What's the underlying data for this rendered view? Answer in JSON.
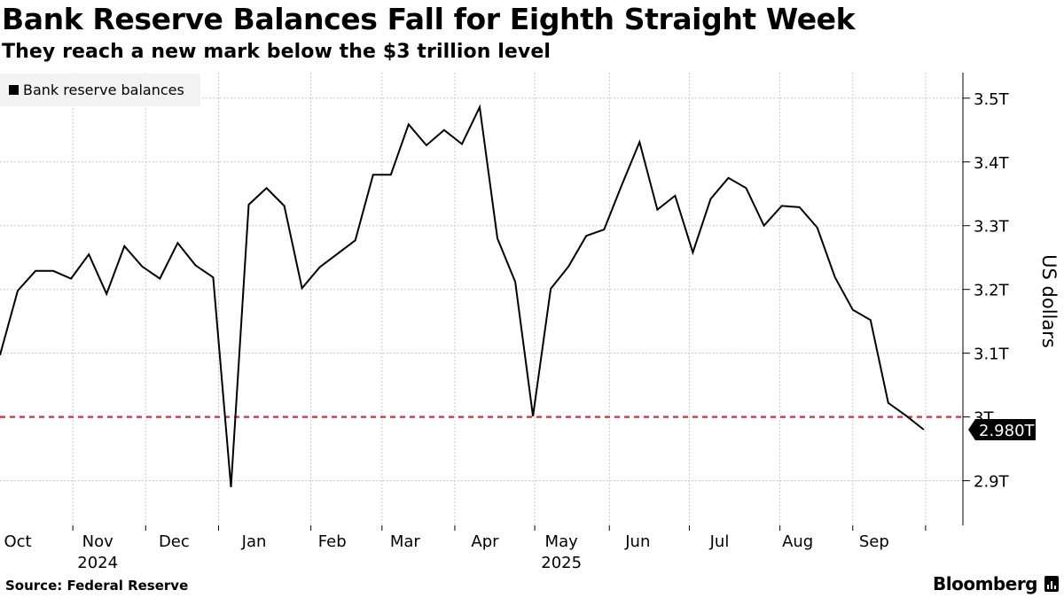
{
  "header": {
    "title": "Bank Reserve Balances Fall for Eighth Straight Week",
    "subtitle": "They reach a new mark below the $3 trillion level"
  },
  "footer": {
    "source": "Source: Federal Reserve",
    "brand": "Bloomberg"
  },
  "colors": {
    "line": "#000000",
    "reference": "#e0283c",
    "grid": "#c8c8c8",
    "last_label_bg": "#000000"
  },
  "chart_data": {
    "type": "line",
    "title": "Bank Reserve Balances Fall for Eighth Straight Week",
    "subtitle": "They reach a new mark below the $3 trillion level",
    "ylabel": "US dollars",
    "ylim": [
      2.83,
      3.54
    ],
    "y_ticks": [
      2.9,
      3.0,
      3.1,
      3.2,
      3.3,
      3.4,
      3.5
    ],
    "y_tick_labels": [
      "2.9T",
      "3T",
      "3.1T",
      "3.2T",
      "3.3T",
      "3.4T",
      "3.5T"
    ],
    "grid": true,
    "legend": {
      "position": "top-left",
      "entries": [
        "Bank reserve balances"
      ]
    },
    "x_unit": "weeks since 2024-09-25",
    "xlim": [
      0,
      54.2
    ],
    "months": [
      {
        "label": "Oct",
        "x": 1.0
      },
      {
        "label": "Nov",
        "x": 5.5
      },
      {
        "label": "Dec",
        "x": 9.8
      },
      {
        "label": "Jan",
        "x": 14.3
      },
      {
        "label": "Feb",
        "x": 18.7
      },
      {
        "label": "Mar",
        "x": 22.8
      },
      {
        "label": "Apr",
        "x": 27.3
      },
      {
        "label": "May",
        "x": 31.6
      },
      {
        "label": "Jun",
        "x": 35.9
      },
      {
        "label": "Jul",
        "x": 40.5
      },
      {
        "label": "Aug",
        "x": 44.9
      },
      {
        "label": "Sep",
        "x": 49.2
      }
    ],
    "year_labels": [
      {
        "label": "2024",
        "under": "Nov"
      },
      {
        "label": "2025",
        "under": "May"
      }
    ],
    "month_dividers": [
      4.1,
      8.2,
      12.3,
      17.5,
      21.5,
      25.6,
      30.1,
      34.3,
      38.8,
      43.9,
      48.0,
      52.1
    ],
    "series": [
      {
        "name": "Bank reserve balances",
        "x": [
          0,
          1,
          2,
          3,
          4,
          5,
          6,
          7,
          8,
          9,
          10,
          11,
          12,
          13,
          14,
          15,
          16,
          17,
          18,
          19,
          20,
          21,
          22,
          23,
          24,
          25,
          26,
          27,
          28,
          29,
          30,
          31,
          32,
          33,
          34,
          35,
          36,
          37,
          38,
          39,
          40,
          41,
          42,
          43,
          44,
          45,
          46,
          47,
          48,
          49,
          50,
          51,
          52
        ],
        "values": [
          3.097,
          3.198,
          3.229,
          3.229,
          3.217,
          3.255,
          3.193,
          3.268,
          3.236,
          3.217,
          3.273,
          3.238,
          3.219,
          2.89,
          3.333,
          3.359,
          3.331,
          3.202,
          3.235,
          3.256,
          3.277,
          3.38,
          3.38,
          3.459,
          3.426,
          3.45,
          3.428,
          3.486,
          3.28,
          3.212,
          3.001,
          3.201,
          3.236,
          3.284,
          3.294,
          3.364,
          3.431,
          3.325,
          3.347,
          3.258,
          3.342,
          3.375,
          3.359,
          3.3,
          3.331,
          3.329,
          3.297,
          3.219,
          3.168,
          3.152,
          3.022,
          3.002,
          2.98
        ]
      }
    ],
    "reference_line": {
      "value": 3.0,
      "style": "dashed"
    },
    "last_value_label": "2.980T",
    "last_value": 2.98
  }
}
